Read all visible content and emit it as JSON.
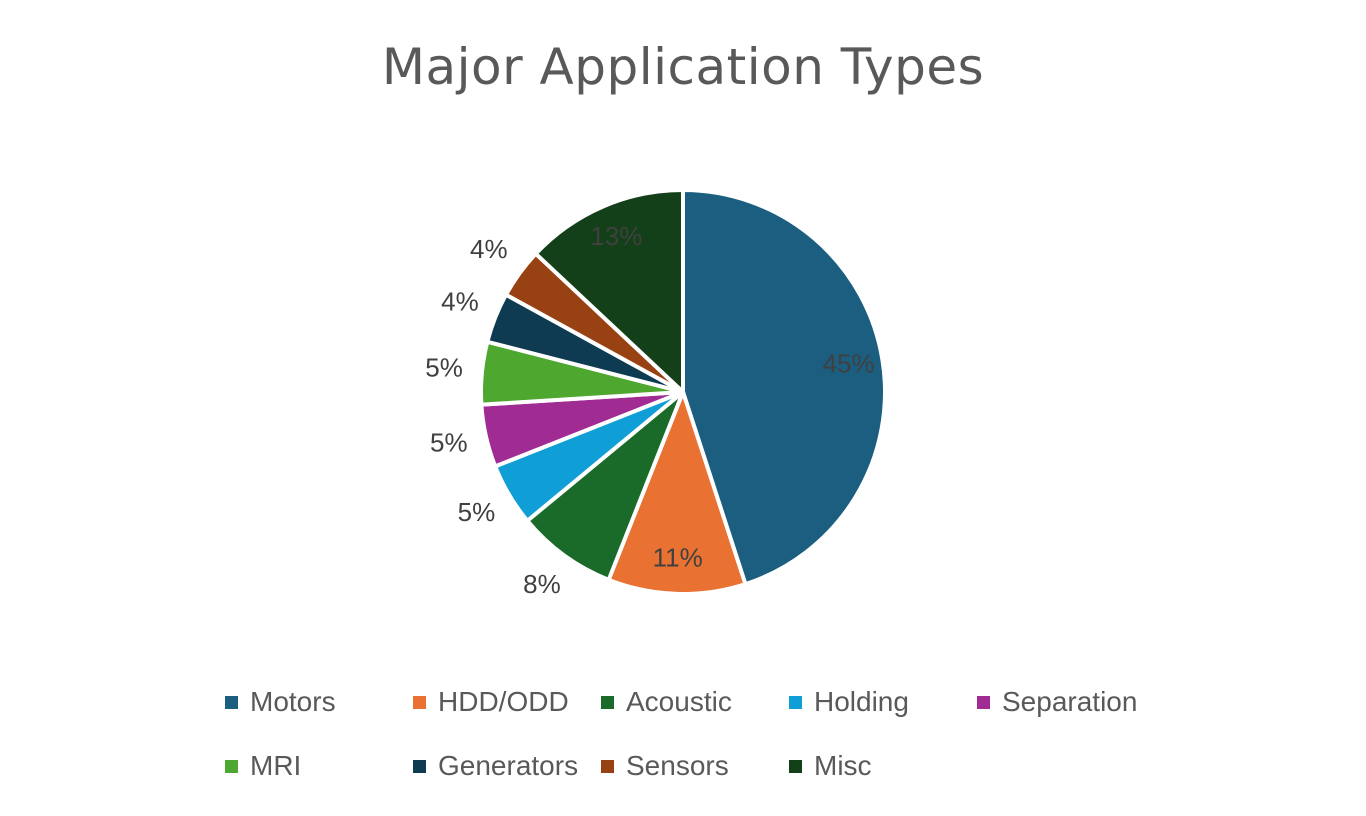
{
  "chart_data": {
    "type": "pie",
    "title": "Major Application Types",
    "categories": [
      "Motors",
      "HDD/ODD",
      "Acoustic",
      "Holding",
      "Separation",
      "MRI",
      "Generators",
      "Sensors",
      "Misc"
    ],
    "values": [
      45,
      11,
      8,
      5,
      5,
      5,
      4,
      4,
      13
    ],
    "data_labels": [
      "45%",
      "11%",
      "8%",
      "5%",
      "5%",
      "5%",
      "4%",
      "4%",
      "13%"
    ],
    "colors": [
      "#1b5e80",
      "#e97132",
      "#1a6b2a",
      "#0f9ed5",
      "#a02b93",
      "#4ea72e",
      "#0e3a52",
      "#984213",
      "#133f19"
    ],
    "legend_position": "bottom"
  }
}
